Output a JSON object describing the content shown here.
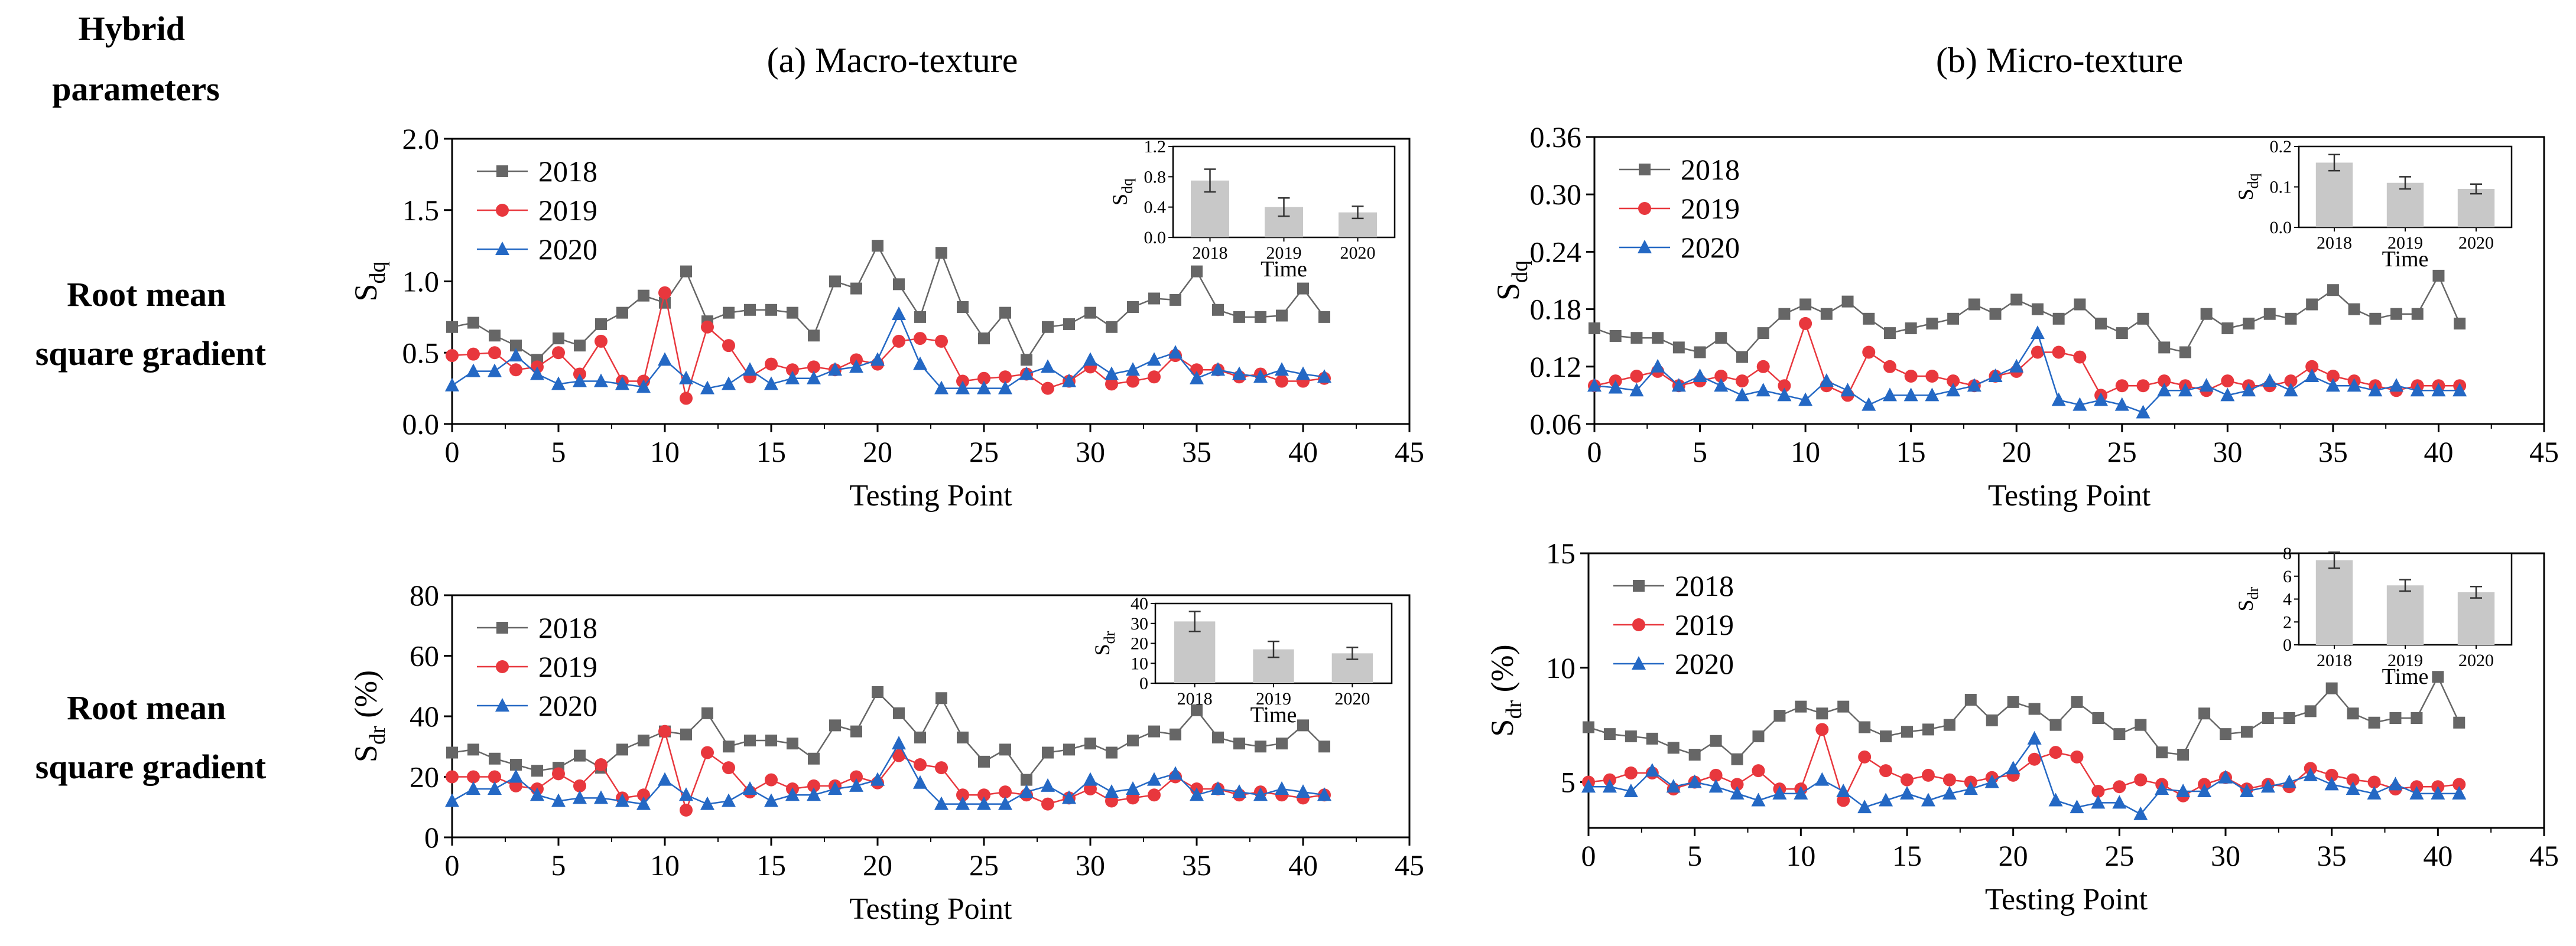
{
  "row_header": "Hybrid parameters",
  "column_titles": [
    "(a) Macro-texture",
    "(b) Micro-texture"
  ],
  "row_labels": [
    "Root mean square gradient",
    "Root mean square gradient"
  ],
  "colors": {
    "s2018": "#666666",
    "s2019": "#e8373d",
    "s2020": "#2468c4",
    "bar": "#c8c8c8"
  },
  "markers": {
    "s2018": "square",
    "s2019": "circle",
    "s2020": "triangle"
  },
  "chart_data": [
    {
      "id": "a-sdq",
      "type": "line",
      "ylabel": "S",
      "ylabel_sub": "dq",
      "ylabel_unit": "",
      "xlabel": "Testing Point",
      "xlim": [
        0,
        45
      ],
      "ylim": [
        0,
        2.0
      ],
      "xticks": [
        0,
        5,
        10,
        15,
        20,
        25,
        30,
        35,
        40,
        45
      ],
      "xtick_labels": [
        "0",
        "5",
        "10",
        "15",
        "20",
        "25",
        "30",
        "35",
        "40",
        "45"
      ],
      "yticks": [
        0,
        0.5,
        1.0,
        1.5,
        2.0
      ],
      "ytick_labels": [
        "0.0",
        "0.5",
        "1.0",
        "1.5",
        "2.0"
      ],
      "legend": "top-left",
      "series": [
        {
          "name": "2018",
          "values": [
            0.68,
            0.71,
            0.62,
            0.55,
            0.45,
            0.6,
            0.55,
            0.7,
            0.78,
            0.9,
            0.85,
            1.07,
            0.72,
            0.78,
            0.8,
            0.8,
            0.78,
            0.62,
            1.0,
            0.95,
            1.25,
            0.98,
            0.75,
            1.2,
            0.82,
            0.6,
            0.78,
            0.45,
            0.68,
            0.7,
            0.78,
            0.68,
            0.82,
            0.88,
            0.87,
            1.07,
            0.8,
            0.75,
            0.75,
            0.76,
            0.95,
            0.75
          ]
        },
        {
          "name": "2019",
          "values": [
            0.48,
            0.49,
            0.5,
            0.38,
            0.4,
            0.5,
            0.35,
            0.58,
            0.3,
            0.3,
            0.92,
            0.18,
            0.68,
            0.55,
            0.33,
            0.42,
            0.38,
            0.4,
            0.38,
            0.45,
            0.42,
            0.58,
            0.6,
            0.58,
            0.3,
            0.32,
            0.33,
            0.35,
            0.25,
            0.3,
            0.4,
            0.28,
            0.3,
            0.33,
            0.48,
            0.38,
            0.38,
            0.33,
            0.35,
            0.3,
            0.3,
            0.32
          ]
        },
        {
          "name": "2020",
          "values": [
            0.27,
            0.37,
            0.37,
            0.48,
            0.35,
            0.28,
            0.3,
            0.3,
            0.28,
            0.26,
            0.45,
            0.32,
            0.25,
            0.28,
            0.38,
            0.28,
            0.32,
            0.32,
            0.38,
            0.4,
            0.45,
            0.77,
            0.42,
            0.25,
            0.25,
            0.25,
            0.25,
            0.35,
            0.4,
            0.3,
            0.45,
            0.35,
            0.38,
            0.45,
            0.5,
            0.32,
            0.38,
            0.35,
            0.33,
            0.38,
            0.35,
            0.33
          ]
        }
      ],
      "inset": {
        "categories": [
          "2018",
          "2019",
          "2020"
        ],
        "values": [
          0.75,
          0.4,
          0.33
        ],
        "errors": [
          0.15,
          0.12,
          0.08
        ],
        "ylim": [
          0,
          1.2
        ],
        "yticks": [
          0,
          0.4,
          0.8,
          1.2
        ],
        "ytick_labels": [
          "0.0",
          "0.4",
          "0.8",
          "1.2"
        ],
        "ylabel": "S",
        "ylabel_sub": "dq",
        "xlabel": "Time"
      }
    },
    {
      "id": "b-sdq",
      "type": "line",
      "ylabel": "S",
      "ylabel_sub": "dq",
      "ylabel_unit": "",
      "xlabel": "Testing Point",
      "xlim": [
        0,
        45
      ],
      "ylim": [
        0.06,
        0.36
      ],
      "xticks": [
        0,
        5,
        10,
        15,
        20,
        25,
        30,
        35,
        40,
        45
      ],
      "xtick_labels": [
        "0",
        "5",
        "10",
        "15",
        "20",
        "25",
        "30",
        "35",
        "40",
        "45"
      ],
      "yticks": [
        0.06,
        0.12,
        0.18,
        0.24,
        0.3,
        0.36
      ],
      "ytick_labels": [
        "0.06",
        "0.12",
        "0.18",
        "0.24",
        "0.30",
        "0.36"
      ],
      "legend": "top-left",
      "series": [
        {
          "name": "2018",
          "values": [
            0.16,
            0.152,
            0.15,
            0.15,
            0.14,
            0.135,
            0.15,
            0.13,
            0.155,
            0.175,
            0.185,
            0.175,
            0.188,
            0.17,
            0.155,
            0.16,
            0.165,
            0.17,
            0.185,
            0.175,
            0.19,
            0.18,
            0.17,
            0.185,
            0.165,
            0.155,
            0.17,
            0.14,
            0.135,
            0.175,
            0.16,
            0.165,
            0.175,
            0.17,
            0.185,
            0.2,
            0.18,
            0.17,
            0.175,
            0.175,
            0.215,
            0.165
          ]
        },
        {
          "name": "2019",
          "values": [
            0.1,
            0.105,
            0.11,
            0.115,
            0.1,
            0.105,
            0.11,
            0.105,
            0.12,
            0.1,
            0.165,
            0.1,
            0.09,
            0.135,
            0.12,
            0.11,
            0.11,
            0.105,
            0.1,
            0.11,
            0.115,
            0.135,
            0.135,
            0.13,
            0.09,
            0.1,
            0.1,
            0.105,
            0.1,
            0.095,
            0.105,
            0.1,
            0.1,
            0.105,
            0.12,
            0.11,
            0.105,
            0.1,
            0.095,
            0.1,
            0.1,
            0.1
          ]
        },
        {
          "name": "2020",
          "values": [
            0.1,
            0.098,
            0.095,
            0.12,
            0.1,
            0.11,
            0.1,
            0.09,
            0.095,
            0.09,
            0.085,
            0.105,
            0.095,
            0.08,
            0.09,
            0.09,
            0.09,
            0.095,
            0.1,
            0.11,
            0.12,
            0.155,
            0.085,
            0.08,
            0.085,
            0.08,
            0.072,
            0.095,
            0.095,
            0.1,
            0.09,
            0.095,
            0.105,
            0.095,
            0.11,
            0.1,
            0.1,
            0.095,
            0.1,
            0.095,
            0.095,
            0.095
          ]
        }
      ],
      "inset": {
        "categories": [
          "2018",
          "2019",
          "2020"
        ],
        "values": [
          0.16,
          0.11,
          0.095
        ],
        "errors": [
          0.02,
          0.015,
          0.012
        ],
        "ylim": [
          0,
          0.2
        ],
        "yticks": [
          0,
          0.1,
          0.2
        ],
        "ytick_labels": [
          "0.0",
          "0.1",
          "0.2"
        ],
        "ylabel": "S",
        "ylabel_sub": "dq",
        "xlabel": "Time"
      }
    },
    {
      "id": "a-sdr",
      "type": "line",
      "ylabel": "S",
      "ylabel_sub": "dr",
      "ylabel_unit": " (%)",
      "xlabel": "Testing Point",
      "xlim": [
        0,
        45
      ],
      "ylim": [
        0,
        80
      ],
      "xticks": [
        0,
        5,
        10,
        15,
        20,
        25,
        30,
        35,
        40,
        45
      ],
      "xtick_labels": [
        "0",
        "5",
        "10",
        "15",
        "20",
        "25",
        "30",
        "35",
        "40",
        "45"
      ],
      "yticks": [
        0,
        20,
        40,
        60,
        80
      ],
      "ytick_labels": [
        "0",
        "20",
        "40",
        "60",
        "80"
      ],
      "legend": "top-left",
      "series": [
        {
          "name": "2018",
          "values": [
            28,
            29,
            26,
            24,
            22,
            23,
            27,
            23,
            29,
            32,
            35,
            34,
            41,
            30,
            32,
            32,
            31,
            26,
            37,
            35,
            48,
            41,
            33,
            46,
            33,
            25,
            29,
            19,
            28,
            29,
            31,
            28,
            32,
            35,
            34,
            42,
            33,
            31,
            30,
            31,
            37,
            30
          ]
        },
        {
          "name": "2019",
          "values": [
            20,
            20,
            20,
            17,
            16,
            21,
            17,
            24,
            13,
            14,
            35,
            9,
            28,
            23,
            15,
            19,
            16,
            17,
            17,
            20,
            18,
            27,
            24,
            23,
            14,
            14,
            15,
            14,
            11,
            13,
            16,
            12,
            13,
            14,
            20,
            16,
            16,
            14,
            15,
            14,
            13,
            14
          ]
        },
        {
          "name": "2020",
          "values": [
            12,
            16,
            16,
            20,
            14,
            12,
            13,
            13,
            12,
            11,
            19,
            14,
            11,
            12,
            16,
            12,
            14,
            14,
            16,
            17,
            19,
            31,
            18,
            11,
            11,
            11,
            11,
            15,
            17,
            13,
            19,
            15,
            16,
            19,
            21,
            14,
            16,
            15,
            14,
            16,
            15,
            14
          ]
        }
      ],
      "inset": {
        "categories": [
          "2018",
          "2019",
          "2020"
        ],
        "values": [
          31,
          17,
          15
        ],
        "errors": [
          5,
          4,
          3
        ],
        "ylim": [
          0,
          40
        ],
        "yticks": [
          0,
          10,
          20,
          30,
          40
        ],
        "ytick_labels": [
          "0",
          "10",
          "20",
          "30",
          "40"
        ],
        "ylabel": "S",
        "ylabel_sub": "dr",
        "xlabel": "Time"
      }
    },
    {
      "id": "b-sdr",
      "type": "line",
      "ylabel": "S",
      "ylabel_sub": "dr",
      "ylabel_unit": " (%)",
      "xlabel": "Testing Point",
      "xlim": [
        0,
        45
      ],
      "ylim": [
        3,
        15
      ],
      "xticks": [
        0,
        5,
        10,
        15,
        20,
        25,
        30,
        35,
        40,
        45
      ],
      "xtick_labels": [
        "0",
        "5",
        "10",
        "15",
        "20",
        "25",
        "30",
        "35",
        "40",
        "45"
      ],
      "yticks": [
        5,
        10,
        15
      ],
      "ytick_labels": [
        "5",
        "10",
        "15"
      ],
      "legend": "top-left",
      "series": [
        {
          "name": "2018",
          "values": [
            7.4,
            7.1,
            7.0,
            6.9,
            6.5,
            6.2,
            6.8,
            6.0,
            7.0,
            7.9,
            8.3,
            8.0,
            8.3,
            7.4,
            7.0,
            7.2,
            7.3,
            7.5,
            8.6,
            7.7,
            8.5,
            8.2,
            7.5,
            8.5,
            7.8,
            7.1,
            7.5,
            6.3,
            6.2,
            8.0,
            7.1,
            7.2,
            7.8,
            7.8,
            8.1,
            9.1,
            8.0,
            7.6,
            7.8,
            7.8,
            9.6,
            7.6
          ]
        },
        {
          "name": "2019",
          "values": [
            5.0,
            5.1,
            5.4,
            5.4,
            4.7,
            5.0,
            5.3,
            4.9,
            5.5,
            4.7,
            4.7,
            7.3,
            4.2,
            6.1,
            5.5,
            5.1,
            5.3,
            5.1,
            5.0,
            5.2,
            5.3,
            6.0,
            6.3,
            6.1,
            4.6,
            4.8,
            5.1,
            4.9,
            4.4,
            4.9,
            5.2,
            4.7,
            4.9,
            4.8,
            5.6,
            5.3,
            5.1,
            5.0,
            4.7,
            4.8,
            4.8,
            4.9
          ]
        },
        {
          "name": "2020",
          "values": [
            4.8,
            4.8,
            4.6,
            5.5,
            4.8,
            5.0,
            4.8,
            4.5,
            4.2,
            4.5,
            4.5,
            5.1,
            4.6,
            3.9,
            4.2,
            4.5,
            4.2,
            4.5,
            4.7,
            5.0,
            5.6,
            6.9,
            4.2,
            3.9,
            4.1,
            4.1,
            3.6,
            4.7,
            4.6,
            4.6,
            5.2,
            4.6,
            4.8,
            5.0,
            5.3,
            4.9,
            4.7,
            4.5,
            4.9,
            4.5,
            4.5,
            4.5
          ]
        }
      ],
      "inset": {
        "categories": [
          "2018",
          "2019",
          "2020"
        ],
        "values": [
          7.4,
          5.2,
          4.6
        ],
        "errors": [
          0.7,
          0.5,
          0.5
        ],
        "ylim": [
          0,
          8
        ],
        "yticks": [
          0,
          2,
          4,
          6,
          8
        ],
        "ytick_labels": [
          "0",
          "2",
          "4",
          "6",
          "8"
        ],
        "ylabel": "S",
        "ylabel_sub": "dr",
        "xlabel": "Time"
      }
    }
  ]
}
